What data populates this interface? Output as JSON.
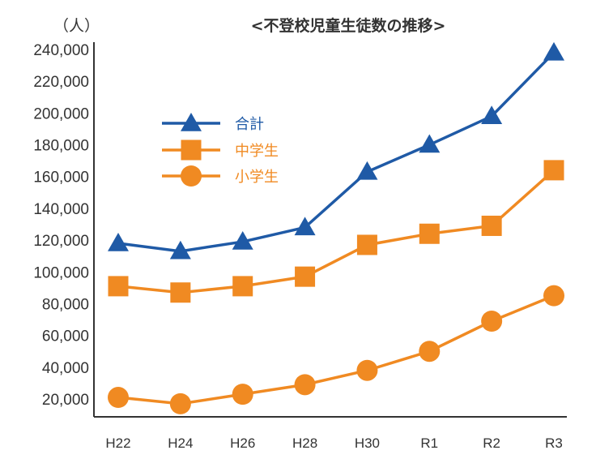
{
  "chart_data": {
    "type": "line",
    "title": "<不登校児童生徒数の推移>",
    "ylabel": "（人）",
    "xlabel": "",
    "categories": [
      "H22",
      "H24",
      "H26",
      "H28",
      "H30",
      "R1",
      "R2",
      "R3"
    ],
    "y_ticks": [
      "20,000",
      "40,000",
      "60,000",
      "80,000",
      "100,000",
      "120,000",
      "140,000",
      "160,000",
      "180,000",
      "200,000",
      "220,000",
      "240,000"
    ],
    "y_tick_values": [
      20000,
      40000,
      60000,
      80000,
      100000,
      120000,
      140000,
      160000,
      180000,
      200000,
      220000,
      240000
    ],
    "ylim": [
      10000,
      250000
    ],
    "grid": false,
    "legend_position": "upper-left",
    "series": [
      {
        "name": "合計",
        "marker": "triangle",
        "color": "#1f5aa6",
        "values": [
          118000,
          113000,
          119000,
          128000,
          163000,
          180000,
          198000,
          238000
        ]
      },
      {
        "name": "中学生",
        "marker": "square",
        "color": "#f08a22",
        "values": [
          91000,
          87000,
          91000,
          97000,
          117000,
          124000,
          129000,
          164000
        ]
      },
      {
        "name": "小学生",
        "marker": "circle",
        "color": "#f08a22",
        "values": [
          21000,
          17000,
          23000,
          29000,
          38000,
          50000,
          69000,
          85000
        ]
      }
    ]
  }
}
